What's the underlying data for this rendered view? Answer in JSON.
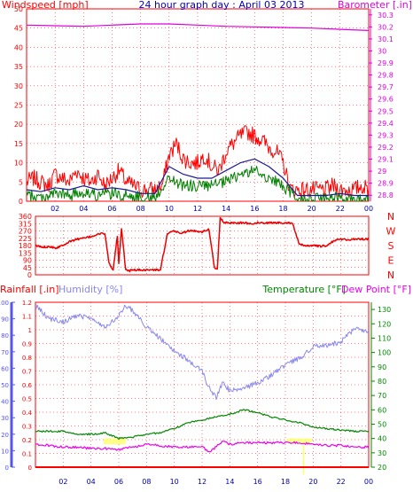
{
  "header": {
    "left_label": "Windspeed [mph]",
    "title": "24 hour graph day : April 03 2013",
    "right_label": "Barometer [.in]"
  },
  "colors": {
    "frame": "#ff0000",
    "grid": "#ff0000",
    "wind": "#ff0000",
    "wind_avg": "#1a1a99",
    "wind_low": "#008000",
    "barometer": "#dd00dd",
    "direction": "#ee0000",
    "humidity": "#8888ee",
    "rain": "#ff0000",
    "temperature": "#008800",
    "dewpoint": "#ee00ee",
    "highlight": "#ffff66",
    "title": "#0000cc",
    "humidity_axis": "#5555ee"
  },
  "chart_data": [
    {
      "type": "line",
      "name": "wind_barometer",
      "x_ticks": [
        "02",
        "04",
        "06",
        "08",
        "10",
        "12",
        "14",
        "16",
        "18",
        "20",
        "22",
        "00"
      ],
      "xlim": [
        0,
        24
      ],
      "ylim_left": [
        0,
        50
      ],
      "ylim_right": [
        28.75,
        30.35
      ],
      "left_ticks": [
        "0",
        "5",
        "10",
        "15",
        "20",
        "25",
        "30",
        "35",
        "40",
        "45",
        "50"
      ],
      "right_ticks": [
        "28.8",
        "28.9",
        "29",
        "29.1",
        "29.2",
        "29.3",
        "29.4",
        "29.5",
        "29.6",
        "29.7",
        "29.8",
        "29.9",
        "30",
        "30.1",
        "30.2",
        "30.3"
      ],
      "series": [
        {
          "name": "Windspeed [mph]",
          "x": [
            0,
            0.5,
            1,
            1.5,
            2,
            2.5,
            3,
            3.5,
            4,
            4.5,
            5,
            5.5,
            6,
            6.5,
            7,
            7.5,
            8,
            8.5,
            9,
            9.5,
            10,
            10.5,
            11,
            11.5,
            12,
            12.5,
            13,
            13.5,
            14,
            14.5,
            15,
            15.5,
            16,
            16.5,
            17,
            17.5,
            18,
            18.5,
            19,
            19.5,
            20,
            20.5,
            21,
            21.5,
            22,
            22.5,
            23,
            23.5,
            24
          ],
          "y": [
            5,
            6,
            5,
            4,
            7,
            6,
            5,
            8,
            6,
            5,
            7,
            4,
            6,
            8,
            5,
            4,
            3,
            3,
            3,
            4,
            12,
            15,
            11,
            10,
            10,
            12,
            9,
            8,
            13,
            15,
            17,
            18,
            17,
            16,
            14,
            13,
            10,
            3,
            3,
            3,
            3,
            3,
            3,
            4,
            3,
            3,
            3,
            4,
            3
          ]
        },
        {
          "name": "Average windspeed",
          "x": [
            0,
            1,
            2,
            3,
            4,
            5,
            6,
            7,
            8,
            9,
            10,
            11,
            12,
            13,
            14,
            15,
            16,
            17,
            18,
            19,
            20,
            21,
            22,
            23,
            24
          ],
          "y": [
            3,
            2.5,
            3.5,
            3,
            4,
            3,
            3.5,
            3,
            2,
            2,
            9,
            7,
            6,
            6,
            8,
            10,
            11,
            9,
            6,
            1.5,
            1.5,
            1.5,
            2,
            1.5,
            1.5
          ]
        },
        {
          "name": "Low windspeed",
          "x": [
            0,
            1,
            2,
            3,
            4,
            5,
            6,
            7,
            8,
            9,
            10,
            11,
            12,
            13,
            14,
            15,
            16,
            17,
            18,
            19,
            20,
            21,
            22,
            23,
            24
          ],
          "y": [
            1.5,
            1,
            2,
            1.5,
            2.5,
            1.5,
            2,
            1.5,
            1,
            1,
            6,
            4,
            4,
            4,
            5,
            7,
            8,
            6,
            4,
            0.5,
            0.5,
            0.5,
            1,
            0.5,
            0.5
          ]
        },
        {
          "name": "Barometer [.in]",
          "x": [
            0,
            2,
            4,
            6,
            8,
            10,
            12,
            14,
            16,
            18,
            20,
            22,
            24
          ],
          "y": [
            30.215,
            30.21,
            30.205,
            30.215,
            30.225,
            30.225,
            30.215,
            30.205,
            30.2,
            30.195,
            30.19,
            30.18,
            30.17
          ]
        }
      ]
    },
    {
      "type": "line",
      "name": "wind_direction",
      "x_ticks": [
        "02",
        "04",
        "06",
        "08",
        "10",
        "12",
        "14",
        "16",
        "18",
        "20",
        "22",
        "00"
      ],
      "xlim": [
        0,
        24
      ],
      "ylim": [
        0,
        360
      ],
      "left_ticks": [
        "0",
        "45",
        "90",
        "135",
        "180",
        "225",
        "270",
        "315",
        "360"
      ],
      "right_ticks": [
        "N",
        "W",
        "S",
        "E",
        "N"
      ],
      "series": [
        {
          "name": "Wind direction",
          "x": [
            0,
            0.5,
            1,
            1.5,
            2,
            2.5,
            3,
            3.5,
            4,
            4.5,
            5,
            5.3,
            5.6,
            5.9,
            6,
            6.2,
            6.5,
            6.8,
            7,
            7.5,
            8,
            8.5,
            9,
            9.5,
            10,
            10.5,
            11,
            11.5,
            12,
            12.5,
            12.9,
            13.1,
            13.3,
            13.6,
            14,
            14.5,
            15,
            15.5,
            16,
            16.5,
            17,
            17.5,
            18,
            18.5,
            19,
            19.5,
            20,
            20.5,
            21,
            21.5,
            22,
            22.5,
            23,
            23.5,
            24
          ],
          "y": [
            180,
            170,
            175,
            165,
            185,
            205,
            220,
            225,
            235,
            250,
            255,
            70,
            30,
            240,
            70,
            280,
            30,
            25,
            30,
            30,
            30,
            30,
            30,
            250,
            270,
            255,
            270,
            270,
            265,
            280,
            40,
            30,
            350,
            320,
            320,
            320,
            320,
            315,
            320,
            320,
            320,
            320,
            320,
            320,
            185,
            180,
            180,
            175,
            180,
            210,
            220,
            215,
            220,
            220,
            220
          ]
        }
      ]
    },
    {
      "type": "line",
      "name": "rain_humidity_temperature",
      "labels": {
        "rainfall": "Rainfall [.in]",
        "humidity": "Humidity [%]",
        "temperature": "Temperature [°F]",
        "dewpoint": "Dew Point [°F]"
      },
      "x_ticks": [
        "02",
        "04",
        "06",
        "08",
        "10",
        "12",
        "14",
        "16",
        "18",
        "20",
        "22",
        "00"
      ],
      "xlim": [
        0,
        24
      ],
      "rain_ticks": [
        "0",
        "0.1",
        "0.2",
        "0.3",
        "0.4",
        "0.5",
        "0.6",
        "0.7",
        "0.8",
        "0.9",
        "1",
        "1.1",
        "1.2"
      ],
      "rain_lim": [
        0,
        1.2
      ],
      "humidity_ticks": [
        "0",
        "10",
        "20",
        "30",
        "40",
        "50",
        "60",
        "70",
        "80",
        "90",
        "100"
      ],
      "humidity_lim": [
        0,
        100
      ],
      "temp_ticks": [
        "20",
        "30",
        "40",
        "50",
        "60",
        "70",
        "80",
        "90",
        "100",
        "110",
        "120",
        "130"
      ],
      "temp_lim": [
        20,
        135
      ],
      "series": [
        {
          "name": "Humidity [%]",
          "x": [
            0,
            1,
            2,
            3,
            4,
            5,
            6,
            6.5,
            7,
            8,
            9,
            10,
            11,
            12,
            12.5,
            13,
            13.5,
            14,
            15,
            16,
            17,
            18,
            19,
            20,
            21,
            22,
            23,
            24
          ],
          "y": [
            98,
            90,
            88,
            92,
            90,
            85,
            92,
            98,
            95,
            85,
            78,
            70,
            65,
            58,
            48,
            42,
            52,
            46,
            48,
            51,
            56,
            62,
            66,
            73,
            74,
            76,
            84,
            82
          ]
        },
        {
          "name": "Temperature [°F]",
          "x": [
            0,
            1,
            2,
            3,
            4,
            5,
            6,
            7,
            8,
            9,
            10,
            11,
            12,
            13,
            14,
            15,
            16,
            17,
            18,
            19,
            20,
            21,
            22,
            23,
            24
          ],
          "y": [
            45,
            45,
            45,
            43,
            43,
            44,
            40,
            41,
            43,
            44,
            47,
            51,
            53,
            55,
            57,
            60,
            58,
            55,
            53,
            51,
            48,
            47,
            46,
            45,
            45
          ]
        },
        {
          "name": "Dew Point [°F]",
          "x": [
            0,
            1,
            2,
            3,
            4,
            5,
            6,
            7,
            8,
            9,
            10,
            11,
            12,
            12.5,
            13,
            13.5,
            14,
            15,
            16,
            17,
            18,
            19,
            20,
            21,
            22,
            23,
            24
          ],
          "y": [
            36,
            35,
            34,
            34,
            33,
            33,
            32,
            34,
            36,
            35,
            34,
            34,
            35,
            30,
            34,
            38,
            36,
            37,
            37,
            37,
            37,
            37,
            36,
            35,
            35,
            34,
            34
          ]
        },
        {
          "name": "Rainfall [.in]",
          "x": [
            0,
            24
          ],
          "y": [
            0,
            0
          ]
        }
      ]
    }
  ]
}
